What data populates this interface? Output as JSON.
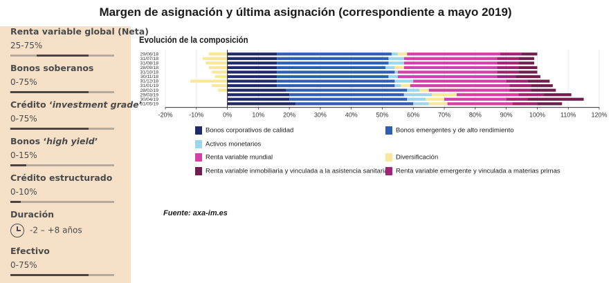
{
  "page_title": "Margen de asignación y última asignación (correspondiente a mayo 2019)",
  "sidebar": [
    {
      "label": "Renta variable global (Neta)",
      "italic": "",
      "suffix": "",
      "range": "25-75%",
      "fill": 0.75,
      "accent": 0.25
    },
    {
      "label": "Bonos soberanos",
      "italic": "",
      "suffix": "",
      "range": "0-75%",
      "fill": 0.75,
      "accent": 0
    },
    {
      "label": "Crédito ‘",
      "italic": "investment grade",
      "suffix": "’",
      "range": "0-75%",
      "fill": 0.75,
      "accent": 0
    },
    {
      "label": "Bonos ‘",
      "italic": "high yield",
      "suffix": "’",
      "range": "0-15%",
      "fill": 0.15,
      "accent": 0
    },
    {
      "label": "Crédito estructurado",
      "italic": "",
      "suffix": "",
      "range": "0-10%",
      "fill": 0.1,
      "accent": 0
    },
    {
      "label": "Duración",
      "italic": "",
      "suffix": "",
      "range": "-2 – +8 años",
      "icon": "clock-icon"
    },
    {
      "label": "Efectivo",
      "italic": "",
      "suffix": "",
      "range": "0-75%",
      "fill": 0.75,
      "accent": 0
    }
  ],
  "source": "Fuente: axa-im.es",
  "chart_data": {
    "type": "bar",
    "orientation": "horizontal",
    "stacked": true,
    "title": "Evolución de la composición",
    "categories": [
      "29/06/18",
      "31/07/18",
      "31/08/18",
      "28/09/18",
      "31/10/18",
      "30/11/18",
      "31/12/18",
      "31/01/19",
      "28/02/19",
      "29/03/19",
      "30/04/19",
      "31/05/19"
    ],
    "xlim": [
      -20,
      120
    ],
    "xticks": [
      "-20%",
      "-10%",
      "0%",
      "10%",
      "20%",
      "30%",
      "40%",
      "50%",
      "60%",
      "70%",
      "80%",
      "90%",
      "100%",
      "110%",
      "120%"
    ],
    "series": [
      {
        "name": "Diversificación",
        "color": "#f9e79b",
        "values": [
          -6,
          -8,
          -7,
          -6,
          -5,
          -4,
          -12,
          -5,
          -3,
          0,
          0,
          0
        ]
      },
      {
        "name": "Bonos corporativos de calidad",
        "color": "#1f2a6b",
        "values": [
          16,
          16,
          16,
          16,
          16,
          16,
          16,
          16,
          19,
          20,
          20,
          22
        ]
      },
      {
        "name": "Bonos emergentes y de alto rendimiento",
        "color": "#2e5fb3",
        "values": [
          37,
          36,
          36,
          35,
          38,
          36,
          38,
          38,
          39,
          37,
          38,
          38
        ]
      },
      {
        "name": "Activos monetarios",
        "color": "#9fd5ec",
        "values": [
          2,
          5,
          5,
          3,
          1,
          3,
          6,
          2,
          4,
          9,
          6,
          5
        ]
      },
      {
        "name": "Diversificación",
        "color": "#f9e79b",
        "values": [
          3,
          0,
          0,
          3,
          0,
          0,
          0,
          3,
          3,
          8,
          6,
          6
        ]
      },
      {
        "name": "Renta variable mundial",
        "color": "#d43fa8",
        "values": [
          30,
          30,
          30,
          30,
          32,
          32,
          30,
          32,
          26,
          20,
          20,
          21
        ]
      },
      {
        "name": "Renta variable emergente y vinculada a materias primas",
        "color": "#a02473",
        "values": [
          7,
          7,
          7,
          7,
          7,
          6,
          7,
          7,
          7,
          8,
          7,
          8
        ]
      },
      {
        "name": "Renta variable inmobiliaria y vinculada a la asistencia sanitaria",
        "color": "#6e1f4e",
        "values": [
          5,
          5,
          5,
          6,
          6,
          8,
          7,
          7,
          8,
          9,
          18,
          8
        ]
      }
    ],
    "legend": [
      {
        "name": "Bonos corporativos de calidad",
        "color": "#1f2a6b"
      },
      {
        "name": "Bonos emergentes y de alto rendimiento",
        "color": "#2e5fb3"
      },
      {
        "name": "Activos monetarios",
        "color": "#9fd5ec"
      },
      {
        "name": "",
        "color": ""
      },
      {
        "name": "Renta variable mundial",
        "color": "#d43fa8"
      },
      {
        "name": "Diversificación",
        "color": "#f9e79b"
      },
      {
        "name": "Renta variable inmobiliaria y vinculada a la asistencia sanitaria",
        "color": "#6e1f4e"
      },
      {
        "name": "Renta variable emergente y vinculada a materias primas",
        "color": "#a02473"
      }
    ],
    "grid": true,
    "legend_placement": "bottom"
  }
}
